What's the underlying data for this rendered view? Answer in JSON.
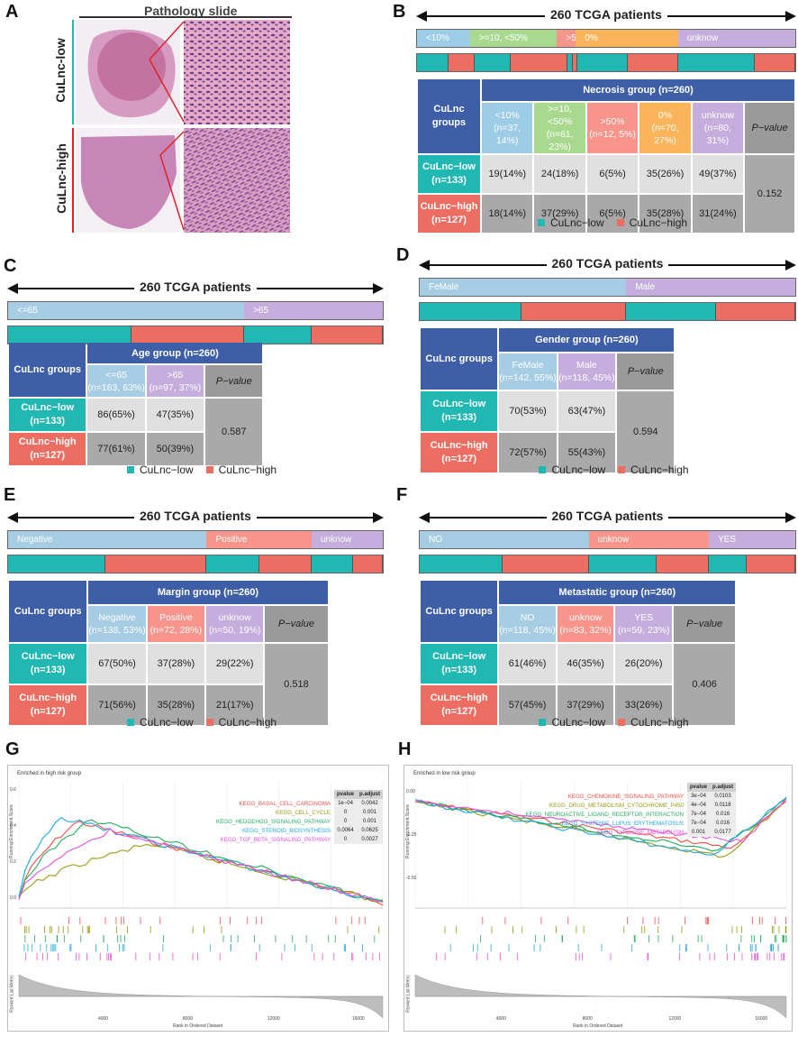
{
  "panel_labels": {
    "a": "A",
    "b": "B",
    "c": "C",
    "d": "D",
    "e": "E",
    "f": "F",
    "g": "G",
    "h": "H"
  },
  "colors": {
    "low": "#21b8b4",
    "high": "#ec6e62",
    "blue": "#3e5fa8"
  },
  "pathology": {
    "title": "Pathology slide",
    "low_label": "CuLnc-low",
    "high_label": "CuLnc-high"
  },
  "legend": {
    "low": "CuLnc−low",
    "high": "CuLnc−high"
  },
  "panels": [
    {
      "id": "B",
      "header": "260 TCGA patients",
      "group_title": "Necrosis group (n=260)",
      "groups_label": "CuLnc groups",
      "pvalue_header": "P−value",
      "pvalue": "0.152",
      "categories": [
        {
          "name": "<10%",
          "detail": "(n=37, 14%)",
          "color": "#9dcce6",
          "share": 14
        },
        {
          "name": ">=10, <50%",
          "detail": "(n=61, 23%)",
          "color": "#a8d98f",
          "share": 23
        },
        {
          "name": ">50%",
          "detail": "(n=12, 5%)",
          "color": "#f7948b",
          "share": 5
        },
        {
          "name": "0%",
          "detail": "(n=70, 27%)",
          "color": "#fbb45a",
          "share": 27
        },
        {
          "name": "unknow",
          "detail": "(n=80, 31%)",
          "color": "#c5aedd",
          "share": 31
        }
      ],
      "low": {
        "label": "CuLnc−low",
        "n": "(n=133)",
        "values": [
          "19(14%)",
          "24(18%)",
          "6(5%)",
          "35(26%)",
          "49(37%)"
        ]
      },
      "high": {
        "label": "CuLnc−high",
        "n": "(n=127)",
        "values": [
          "18(14%)",
          "37(29%)",
          "6(5%)",
          "35(28%)",
          "31(24%)"
        ]
      },
      "strip": [
        [
          "low",
          13
        ],
        [
          "high",
          11
        ],
        [
          "low",
          15
        ],
        [
          "high",
          24
        ],
        [
          "low",
          2
        ],
        [
          "high",
          2
        ],
        [
          "low",
          21
        ],
        [
          "high",
          21
        ],
        [
          "low",
          32
        ],
        [
          "high",
          17
        ]
      ]
    },
    {
      "id": "C",
      "header": "260 TCGA patients",
      "group_title": "Age group (n=260)",
      "groups_label": "CuLnc groups",
      "pvalue_header": "P−value",
      "pvalue": "0.587",
      "categories": [
        {
          "name": "<=65",
          "detail": "(n=163, 63%)",
          "color": "#a7cde4",
          "share": 63
        },
        {
          "name": ">65",
          "detail": "(n=97, 37%)",
          "color": "#c5aedd",
          "share": 37
        }
      ],
      "low": {
        "label": "CuLnc−low",
        "n": "(n=133)",
        "values": [
          "86(65%)",
          "47(35%)"
        ]
      },
      "high": {
        "label": "CuLnc−high",
        "n": "(n=127)",
        "values": [
          "77(61%)",
          "50(39%)"
        ]
      },
      "strip": [
        [
          "low",
          33
        ],
        [
          "high",
          30
        ],
        [
          "low",
          18
        ],
        [
          "high",
          19
        ]
      ]
    },
    {
      "id": "D",
      "header": "260 TCGA patients",
      "group_title": "Gender group (n=260)",
      "groups_label": "CuLnc groups",
      "pvalue_header": "P−value",
      "pvalue": "0.594",
      "categories": [
        {
          "name": "FeMale",
          "detail": "(n=142, 55%)",
          "color": "#a7cde4",
          "share": 55
        },
        {
          "name": "Male",
          "detail": "(n=118, 45%)",
          "color": "#c5aedd",
          "share": 45
        }
      ],
      "low": {
        "label": "CuLnc−low",
        "n": "(n=133)",
        "values": [
          "70(53%)",
          "63(47%)"
        ]
      },
      "high": {
        "label": "CuLnc−high",
        "n": "(n=127)",
        "values": [
          "72(57%)",
          "55(43%)"
        ]
      },
      "strip": [
        [
          "low",
          27
        ],
        [
          "high",
          28
        ],
        [
          "low",
          24
        ],
        [
          "high",
          21
        ]
      ]
    },
    {
      "id": "E",
      "header": "260 TCGA patients",
      "group_title": "Margin group (n=260)",
      "groups_label": "CuLnc groups",
      "pvalue_header": "P−value",
      "pvalue": "0.518",
      "categories": [
        {
          "name": "Negative",
          "detail": "(n=138, 53%)",
          "color": "#a7cde4",
          "share": 53
        },
        {
          "name": "Positive",
          "detail": "(n=72, 28%)",
          "color": "#f7948b",
          "share": 28
        },
        {
          "name": "unknow",
          "detail": "(n=50, 19%)",
          "color": "#c5aedd",
          "share": 19
        }
      ],
      "low": {
        "label": "CuLnc−low",
        "n": "(n=133)",
        "values": [
          "67(50%)",
          "37(28%)",
          "29(22%)"
        ]
      },
      "high": {
        "label": "CuLnc−high",
        "n": "(n=127)",
        "values": [
          "71(56%)",
          "35(28%)",
          "21(17%)"
        ]
      },
      "strip": [
        [
          "low",
          26
        ],
        [
          "high",
          27
        ],
        [
          "low",
          14
        ],
        [
          "high",
          14
        ],
        [
          "low",
          11
        ],
        [
          "high",
          8
        ]
      ]
    },
    {
      "id": "F",
      "header": "260 TCGA patients",
      "group_title": "Metastatic group (n=260)",
      "groups_label": "CuLnc groups",
      "pvalue_header": "P−value",
      "pvalue": "0.406",
      "categories": [
        {
          "name": "NO",
          "detail": "(n=118, 45%)",
          "color": "#a7cde4",
          "share": 45
        },
        {
          "name": "unknow",
          "detail": "(n=83, 32%)",
          "color": "#f7948b",
          "share": 32
        },
        {
          "name": "YES",
          "detail": "(n=59, 23%)",
          "color": "#c5aedd",
          "share": 23
        }
      ],
      "low": {
        "label": "CuLnc−low",
        "n": "(n=133)",
        "values": [
          "61(46%)",
          "46(35%)",
          "26(20%)"
        ]
      },
      "high": {
        "label": "CuLnc−high",
        "n": "(n=127)",
        "values": [
          "57(45%)",
          "37(29%)",
          "33(26%)"
        ]
      },
      "strip": [
        [
          "low",
          22
        ],
        [
          "high",
          23
        ],
        [
          "low",
          18
        ],
        [
          "high",
          14
        ],
        [
          "low",
          10
        ],
        [
          "high",
          13
        ]
      ]
    }
  ],
  "gsea": [
    {
      "id": "G",
      "title": "Enriched in high risk group",
      "ylabel": "Running Enrichment Score",
      "ylabel2": "Ranked List Metric",
      "xlabel": "Rank in Ordered Dataset",
      "yticks": [
        "0.6",
        "0.4",
        "0.2",
        "0.0"
      ],
      "xticks": [
        "4000",
        "8000",
        "12000",
        "16000"
      ],
      "pt_headers": [
        "pvalue",
        "p.adjust"
      ],
      "chart_data": {
        "type": "line",
        "series": [
          {
            "name": "KEGG_BASAL_CELL_CARCINOMA",
            "color": "#f0504a",
            "pvalue": "1e−04",
            "padj": "0.0042",
            "peak": 0.16,
            "height": 0.66
          },
          {
            "name": "KEGG_CELL_CYCLE",
            "color": "#9a9a10",
            "pvalue": "0",
            "padj": "0.001",
            "peak": 0.36,
            "height": 0.47
          },
          {
            "name": "KEGG_HEDGEHOG_SIGNALING_PATHWAY",
            "color": "#22ad5c",
            "pvalue": "0",
            "padj": "0.001",
            "peak": 0.2,
            "height": 0.68
          },
          {
            "name": "KEGG_STEROID_BIOSYNTHESIS",
            "color": "#1ea7e0",
            "pvalue": "0.0064",
            "padj": "0.0625",
            "peak": 0.11,
            "height": 0.7
          },
          {
            "name": "KEGG_TGF_BETA_SIGNALING_PATHWAY",
            "color": "#e84fe0",
            "pvalue": "0",
            "padj": "0.0027",
            "peak": 0.25,
            "height": 0.58
          }
        ]
      }
    },
    {
      "id": "H",
      "title": "Enriched in low risk group",
      "ylabel": "Running Enrichment Score",
      "ylabel2": "Ranked List Metric",
      "xlabel": "Rank in Ordered Dataset",
      "yticks": [
        "0.00",
        "-0.25",
        "-0.50"
      ],
      "xticks": [
        "4000",
        "8000",
        "12000",
        "16000"
      ],
      "pt_headers": [
        "pvalue",
        "p.adjust"
      ],
      "chart_data": {
        "type": "line",
        "series": [
          {
            "name": "KEGG_CHEMOKINE_SIGNALING_PATHWAY",
            "color": "#f0504a",
            "pvalue": "3e−04",
            "padj": "0.0103",
            "trough": 0.86,
            "depth": 0.52
          },
          {
            "name": "KEGG_DRUG_METABOLISM_CYTOCHROME_P450",
            "color": "#9a9a10",
            "pvalue": "4e−04",
            "padj": "0.0118",
            "trough": 0.84,
            "depth": 0.62
          },
          {
            "name": "KEGG_NEUROACTIVE_LIGAND_RECEPTOR_INTERACTION",
            "color": "#22ad5c",
            "pvalue": "7e−04",
            "padj": "0.016",
            "trough": 0.82,
            "depth": 0.55
          },
          {
            "name": "KEGG_SYSTEMIC_LUPUS_ERYTHEMATOSUS",
            "color": "#1ea7e0",
            "pvalue": "7e−04",
            "padj": "0.016",
            "trough": 0.8,
            "depth": 0.6
          },
          {
            "name": "KEGG_TYROSINE_METABOLISM",
            "color": "#e84fe0",
            "pvalue": "0.001",
            "padj": "0.0177",
            "trough": 0.88,
            "depth": 0.45
          }
        ]
      }
    }
  ]
}
